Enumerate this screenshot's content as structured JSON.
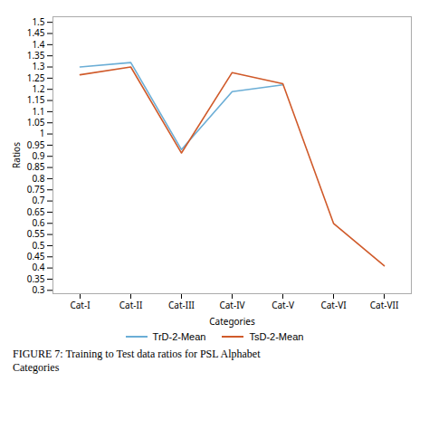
{
  "chart_data": {
    "type": "line",
    "caption": "FIGURE 7: Training to Test data ratios for PSL Alphabet\nCategories",
    "xlabel": "Categories",
    "ylabel": "Ratios",
    "categories": [
      "Cat-I",
      "Cat-II",
      "Cat-III",
      "Cat-IV",
      "Cat-V",
      "Cat-VI",
      "Cat-VII"
    ],
    "series": [
      {
        "name": "TrD-2-Mean",
        "color": "#6BAED6",
        "values": [
          1.3,
          1.32,
          0.93,
          1.19,
          1.22,
          null,
          null
        ]
      },
      {
        "name": "TsD-2-Mean",
        "color": "#D05A2A",
        "values": [
          1.265,
          1.3,
          0.915,
          1.275,
          1.225,
          0.6,
          0.41
        ]
      }
    ],
    "ylim": [
      0.285,
      1.525
    ],
    "yticks": [
      0.3,
      0.35,
      0.4,
      0.45,
      0.5,
      0.55,
      0.6,
      0.65,
      0.7,
      0.75,
      0.8,
      0.85,
      0.9,
      0.95,
      1,
      1.05,
      1.1,
      1.15,
      1.2,
      1.25,
      1.3,
      1.35,
      1.4,
      1.45,
      1.5
    ],
    "grid": false,
    "legend": "bottom"
  }
}
